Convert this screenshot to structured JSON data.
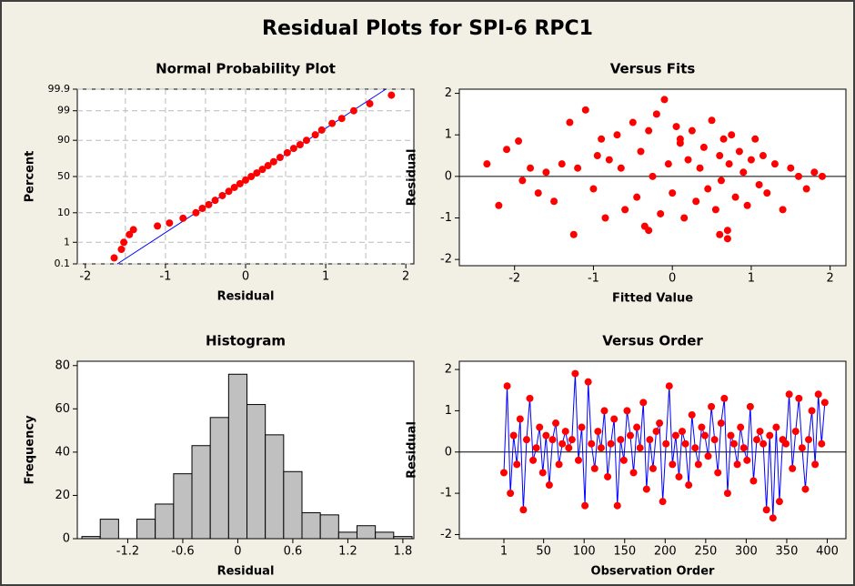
{
  "title": "Residual Plots for SPI-6 RPC1",
  "chart_data": [
    {
      "type": "scatter",
      "title": "Normal Probability Plot",
      "x_label": "Residual",
      "y_label": "Percent",
      "yscale": "probability",
      "color": "#ff0000",
      "line_color": "#0000ff",
      "xlim": [
        -2.1,
        2.1
      ],
      "ylim": [
        0.1,
        99.9
      ],
      "xticks": [
        -2,
        -1,
        0,
        1,
        2
      ],
      "yticks": [
        0.1,
        1,
        10,
        50,
        90,
        99,
        99.9
      ],
      "x_grid": [
        -1.5,
        -1,
        -0.5,
        0,
        0.5,
        1,
        1.5
      ],
      "grid": true,
      "x": [
        -1.64,
        -1.55,
        -1.52,
        -1.45,
        -1.4,
        -1.1,
        -0.95,
        -0.78,
        -0.62,
        -0.54,
        -0.46,
        -0.38,
        -0.29,
        -0.21,
        -0.14,
        -0.07,
        0.0,
        0.07,
        0.14,
        0.21,
        0.28,
        0.35,
        0.43,
        0.52,
        0.6,
        0.68,
        0.76,
        0.87,
        0.95,
        1.08,
        1.2,
        1.35,
        1.55,
        1.82
      ],
      "y": [
        0.2,
        0.5,
        1,
        2,
        3,
        4,
        5,
        7,
        10,
        13,
        16,
        20,
        25,
        30,
        35,
        40,
        45,
        50,
        55,
        60,
        65,
        70,
        75,
        80,
        84,
        87,
        90,
        93,
        95,
        97,
        98,
        99,
        99.5,
        99.8
      ],
      "fit_line": {
        "x": [
          -1.6,
          1.75
        ],
        "y": [
          0.1,
          99.9
        ]
      }
    },
    {
      "type": "scatter",
      "title": "Versus Fits",
      "x_label": "Fitted Value",
      "y_label": "Residual",
      "color": "#ff0000",
      "reference_line": 0,
      "xlim": [
        -2.7,
        2.2
      ],
      "ylim": [
        -2.15,
        2.1
      ],
      "xticks": [
        -2,
        -1,
        0,
        1,
        2
      ],
      "yticks": [
        -2,
        -1,
        0,
        1,
        2
      ],
      "x": [
        -2.35,
        -2.2,
        -2.1,
        -1.95,
        -1.9,
        -1.8,
        -1.7,
        -1.6,
        -1.5,
        -1.4,
        -1.3,
        -1.25,
        -1.2,
        -1.1,
        -1.0,
        -0.95,
        -0.9,
        -0.85,
        -0.8,
        -0.7,
        -0.65,
        -0.6,
        -0.5,
        -0.45,
        -0.4,
        -0.35,
        -0.3,
        -0.25,
        -0.2,
        -0.15,
        -0.1,
        -0.05,
        0.0,
        0.05,
        0.1,
        0.15,
        0.2,
        0.25,
        0.3,
        0.35,
        0.4,
        0.45,
        0.5,
        0.55,
        0.6,
        0.62,
        0.65,
        0.7,
        0.72,
        0.75,
        0.8,
        0.85,
        0.9,
        0.95,
        1.0,
        1.05,
        1.1,
        1.15,
        1.2,
        1.3,
        1.4,
        1.5,
        1.6,
        1.7,
        1.8,
        1.9,
        -0.3,
        0.6,
        0.7,
        0.1
      ],
      "y": [
        0.3,
        -0.7,
        0.65,
        0.85,
        -0.1,
        0.2,
        -0.4,
        0.1,
        -0.6,
        0.3,
        1.3,
        -1.4,
        0.2,
        1.6,
        -0.3,
        0.5,
        0.9,
        -1.0,
        0.4,
        1.0,
        0.2,
        -0.8,
        1.3,
        -0.5,
        0.6,
        -1.2,
        1.1,
        0.0,
        1.5,
        -0.9,
        1.85,
        0.3,
        -0.4,
        1.2,
        0.8,
        -1.0,
        0.4,
        1.1,
        -0.6,
        0.2,
        0.7,
        -0.3,
        1.35,
        -0.8,
        0.5,
        -0.1,
        0.9,
        -1.5,
        0.3,
        1.0,
        -0.5,
        0.6,
        0.1,
        -0.7,
        0.4,
        0.9,
        -0.2,
        0.5,
        -0.4,
        0.3,
        -0.8,
        0.2,
        0.0,
        -0.3,
        0.1,
        0.0,
        -1.3,
        -1.4,
        -1.3,
        0.9
      ]
    },
    {
      "type": "histogram",
      "title": "Histogram",
      "x_label": "Residual",
      "y_label": "Frequency",
      "color": "#c0c0c0",
      "xlim": [
        -1.75,
        1.92
      ],
      "ylim": [
        0,
        82
      ],
      "xticks": [
        -1.2,
        -0.6,
        0.0,
        0.6,
        1.2,
        1.8
      ],
      "yticks": [
        0,
        20,
        40,
        60,
        80
      ],
      "bins": [
        -1.7,
        -1.5,
        -1.3,
        -1.1,
        -0.9,
        -0.7,
        -0.5,
        -0.3,
        -0.1,
        0.1,
        0.3,
        0.5,
        0.7,
        0.9,
        1.1,
        1.3,
        1.5,
        1.7,
        1.9
      ],
      "values": [
        1,
        9,
        0,
        9,
        16,
        30,
        43,
        56,
        76,
        62,
        48,
        31,
        12,
        11,
        3,
        6,
        3,
        1
      ]
    },
    {
      "type": "line",
      "title": "Versus Order",
      "x_label": "Observation Order",
      "y_label": "Residual",
      "color": "#ff0000",
      "line_color": "#0000ff",
      "reference_line": 0,
      "xlim": [
        -54,
        423
      ],
      "ylim": [
        -2.1,
        2.2
      ],
      "xticks": [
        1,
        50,
        100,
        150,
        200,
        250,
        300,
        350,
        400
      ],
      "yticks": [
        -2,
        -1,
        0,
        1,
        2
      ],
      "x": [
        1,
        5,
        9,
        13,
        17,
        21,
        25,
        29,
        33,
        37,
        41,
        45,
        49,
        53,
        57,
        61,
        65,
        69,
        73,
        77,
        81,
        85,
        89,
        93,
        97,
        101,
        105,
        109,
        113,
        117,
        121,
        125,
        129,
        133,
        137,
        141,
        145,
        149,
        153,
        157,
        161,
        165,
        169,
        173,
        177,
        181,
        185,
        189,
        193,
        197,
        201,
        205,
        209,
        213,
        217,
        221,
        225,
        229,
        233,
        237,
        241,
        245,
        249,
        253,
        257,
        261,
        265,
        269,
        273,
        277,
        281,
        285,
        289,
        293,
        297,
        301,
        305,
        309,
        313,
        317,
        321,
        325,
        329,
        333,
        337,
        341,
        345,
        349,
        353,
        357,
        361,
        365,
        369,
        373,
        377,
        381,
        385,
        389,
        393,
        397
      ],
      "y": [
        -0.5,
        1.6,
        -1.0,
        0.4,
        -0.3,
        0.8,
        -1.4,
        0.3,
        1.3,
        -0.2,
        0.1,
        0.6,
        -0.5,
        0.4,
        -0.8,
        0.3,
        0.7,
        -0.3,
        0.2,
        0.5,
        0.1,
        0.3,
        1.9,
        -0.2,
        0.6,
        -1.3,
        1.7,
        0.2,
        -0.4,
        0.5,
        0.1,
        1.0,
        -0.6,
        0.2,
        0.8,
        -1.3,
        0.3,
        -0.2,
        1.0,
        0.4,
        -0.5,
        0.6,
        0.1,
        1.2,
        -0.9,
        0.3,
        -0.4,
        0.5,
        0.7,
        -1.2,
        0.2,
        1.6,
        -0.3,
        0.4,
        -0.6,
        0.5,
        0.2,
        -0.8,
        0.9,
        0.1,
        -0.3,
        0.6,
        0.4,
        -0.1,
        1.1,
        0.3,
        -0.5,
        0.7,
        1.3,
        -1.0,
        0.4,
        0.2,
        -0.3,
        0.6,
        0.1,
        -0.2,
        1.1,
        -0.7,
        0.3,
        0.5,
        0.2,
        -1.4,
        0.4,
        -1.6,
        0.6,
        -1.2,
        0.3,
        0.2,
        1.4,
        -0.4,
        0.5,
        1.3,
        0.1,
        -0.9,
        0.3,
        1.0,
        -0.3,
        1.4,
        0.2,
        1.2
      ]
    }
  ]
}
